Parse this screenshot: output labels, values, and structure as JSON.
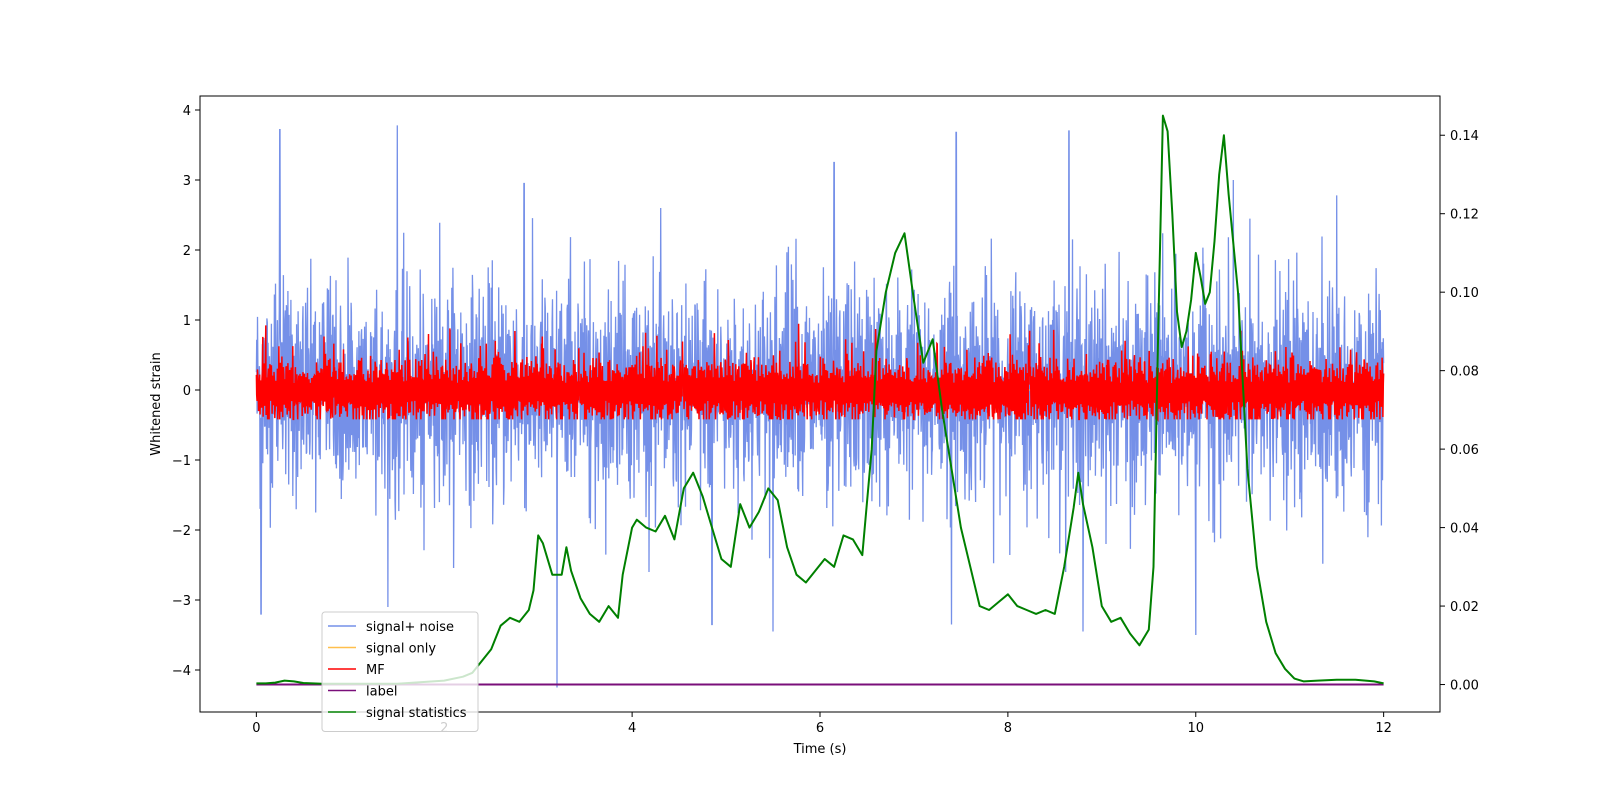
{
  "chart_data": {
    "type": "line",
    "xlabel": "Time (s)",
    "ylabel": "Whitened strain",
    "xlim": [
      -0.6,
      12.6
    ],
    "ylim": [
      -4.6,
      4.2
    ],
    "y2lim": [
      -0.007,
      0.15
    ],
    "x_ticks": [
      0,
      2,
      4,
      6,
      8,
      10,
      12
    ],
    "y_ticks": [
      4,
      3,
      2,
      1,
      0,
      -1,
      -2,
      -3,
      -4
    ],
    "y2_ticks": [
      0.14,
      0.12,
      0.1,
      0.08,
      0.06,
      0.04,
      0.02,
      0.0
    ],
    "x_tick_labels": [
      "0",
      "2",
      "4",
      "6",
      "8",
      "10",
      "12"
    ],
    "y_tick_labels": [
      "4",
      "3",
      "2",
      "1",
      "0",
      "−1",
      "−2",
      "−3",
      "−4"
    ],
    "y2_tick_labels": [
      "0.14",
      "0.12",
      "0.10",
      "0.08",
      "0.06",
      "0.04",
      "0.02",
      "0.00"
    ],
    "legend_position": "lower-left",
    "series": [
      {
        "name": "signal+ noise",
        "color": "#7590e8",
        "axis": "left",
        "kind": "noise",
        "x_range": [
          0,
          12
        ],
        "amplitude_typical": 1.4,
        "peaks_upper": [
          {
            "x": 0.25,
            "y": 3.72
          },
          {
            "x": 1.5,
            "y": 3.78
          },
          {
            "x": 2.85,
            "y": 2.95
          },
          {
            "x": 6.15,
            "y": 3.25
          },
          {
            "x": 7.45,
            "y": 3.68
          },
          {
            "x": 8.65,
            "y": 3.7
          },
          {
            "x": 10.4,
            "y": 3.0
          },
          {
            "x": 11.5,
            "y": 2.78
          }
        ],
        "peaks_lower": [
          {
            "x": 0.05,
            "y": -3.2
          },
          {
            "x": 1.4,
            "y": -3.1
          },
          {
            "x": 3.2,
            "y": -4.25
          },
          {
            "x": 4.85,
            "y": -3.35
          },
          {
            "x": 5.5,
            "y": -3.45
          },
          {
            "x": 7.4,
            "y": -3.35
          },
          {
            "x": 8.8,
            "y": -3.45
          },
          {
            "x": 10.0,
            "y": -3.5
          }
        ]
      },
      {
        "name": "signal only",
        "color": "#ffbf4d",
        "axis": "left",
        "values": [
          [
            0,
            0
          ],
          [
            12,
            0
          ]
        ]
      },
      {
        "name": "MF",
        "color": "#ff0000",
        "axis": "left",
        "kind": "noise",
        "x_range": [
          0,
          12
        ],
        "amplitude_typical": 0.35,
        "peak": 0.98
      },
      {
        "name": "label",
        "color": "#7a0f7a",
        "axis": "right",
        "values": [
          [
            0,
            0
          ],
          [
            12,
            0
          ]
        ]
      },
      {
        "name": "signal statistics",
        "color": "#008000",
        "axis": "right",
        "points": [
          [
            0.0,
            0.0003
          ],
          [
            0.1,
            0.0003
          ],
          [
            0.2,
            0.0005
          ],
          [
            0.3,
            0.001
          ],
          [
            0.4,
            0.0008
          ],
          [
            0.5,
            0.0004
          ],
          [
            0.7,
            0.0002
          ],
          [
            1.0,
            0.0002
          ],
          [
            1.5,
            0.0002
          ],
          [
            2.0,
            0.001
          ],
          [
            2.2,
            0.002
          ],
          [
            2.3,
            0.003
          ],
          [
            2.4,
            0.006
          ],
          [
            2.5,
            0.009
          ],
          [
            2.6,
            0.015
          ],
          [
            2.7,
            0.017
          ],
          [
            2.8,
            0.016
          ],
          [
            2.9,
            0.019
          ],
          [
            2.95,
            0.024
          ],
          [
            3.0,
            0.038
          ],
          [
            3.05,
            0.036
          ],
          [
            3.15,
            0.028
          ],
          [
            3.25,
            0.028
          ],
          [
            3.3,
            0.035
          ],
          [
            3.35,
            0.029
          ],
          [
            3.45,
            0.022
          ],
          [
            3.55,
            0.018
          ],
          [
            3.65,
            0.016
          ],
          [
            3.75,
            0.02
          ],
          [
            3.85,
            0.017
          ],
          [
            3.9,
            0.028
          ],
          [
            4.0,
            0.04
          ],
          [
            4.05,
            0.042
          ],
          [
            4.15,
            0.04
          ],
          [
            4.25,
            0.039
          ],
          [
            4.35,
            0.043
          ],
          [
            4.45,
            0.037
          ],
          [
            4.55,
            0.05
          ],
          [
            4.65,
            0.054
          ],
          [
            4.75,
            0.048
          ],
          [
            4.85,
            0.04
          ],
          [
            4.95,
            0.032
          ],
          [
            5.05,
            0.03
          ],
          [
            5.15,
            0.046
          ],
          [
            5.25,
            0.04
          ],
          [
            5.35,
            0.044
          ],
          [
            5.45,
            0.05
          ],
          [
            5.55,
            0.047
          ],
          [
            5.65,
            0.035
          ],
          [
            5.75,
            0.028
          ],
          [
            5.85,
            0.026
          ],
          [
            5.95,
            0.029
          ],
          [
            6.05,
            0.032
          ],
          [
            6.15,
            0.03
          ],
          [
            6.25,
            0.038
          ],
          [
            6.35,
            0.037
          ],
          [
            6.45,
            0.033
          ],
          [
            6.55,
            0.06
          ],
          [
            6.6,
            0.085
          ],
          [
            6.7,
            0.1
          ],
          [
            6.8,
            0.11
          ],
          [
            6.9,
            0.115
          ],
          [
            7.0,
            0.098
          ],
          [
            7.1,
            0.082
          ],
          [
            7.2,
            0.088
          ],
          [
            7.3,
            0.07
          ],
          [
            7.4,
            0.055
          ],
          [
            7.5,
            0.04
          ],
          [
            7.6,
            0.03
          ],
          [
            7.7,
            0.02
          ],
          [
            7.8,
            0.019
          ],
          [
            7.9,
            0.021
          ],
          [
            8.0,
            0.023
          ],
          [
            8.1,
            0.02
          ],
          [
            8.2,
            0.019
          ],
          [
            8.3,
            0.018
          ],
          [
            8.4,
            0.019
          ],
          [
            8.5,
            0.018
          ],
          [
            8.6,
            0.03
          ],
          [
            8.7,
            0.045
          ],
          [
            8.75,
            0.054
          ],
          [
            8.8,
            0.046
          ],
          [
            8.9,
            0.035
          ],
          [
            9.0,
            0.02
          ],
          [
            9.1,
            0.016
          ],
          [
            9.2,
            0.017
          ],
          [
            9.3,
            0.013
          ],
          [
            9.4,
            0.01
          ],
          [
            9.5,
            0.014
          ],
          [
            9.55,
            0.03
          ],
          [
            9.6,
            0.09
          ],
          [
            9.65,
            0.145
          ],
          [
            9.7,
            0.141
          ],
          [
            9.75,
            0.12
          ],
          [
            9.8,
            0.095
          ],
          [
            9.85,
            0.086
          ],
          [
            9.9,
            0.09
          ],
          [
            9.95,
            0.098
          ],
          [
            10.0,
            0.11
          ],
          [
            10.05,
            0.104
          ],
          [
            10.1,
            0.097
          ],
          [
            10.15,
            0.1
          ],
          [
            10.2,
            0.113
          ],
          [
            10.25,
            0.13
          ],
          [
            10.3,
            0.14
          ],
          [
            10.35,
            0.125
          ],
          [
            10.45,
            0.1
          ],
          [
            10.55,
            0.055
          ],
          [
            10.65,
            0.03
          ],
          [
            10.75,
            0.016
          ],
          [
            10.85,
            0.008
          ],
          [
            10.95,
            0.004
          ],
          [
            11.05,
            0.0015
          ],
          [
            11.15,
            0.0008
          ],
          [
            11.3,
            0.001
          ],
          [
            11.5,
            0.0012
          ],
          [
            11.7,
            0.0012
          ],
          [
            11.9,
            0.0008
          ],
          [
            12.0,
            0.0003
          ]
        ]
      }
    ]
  }
}
